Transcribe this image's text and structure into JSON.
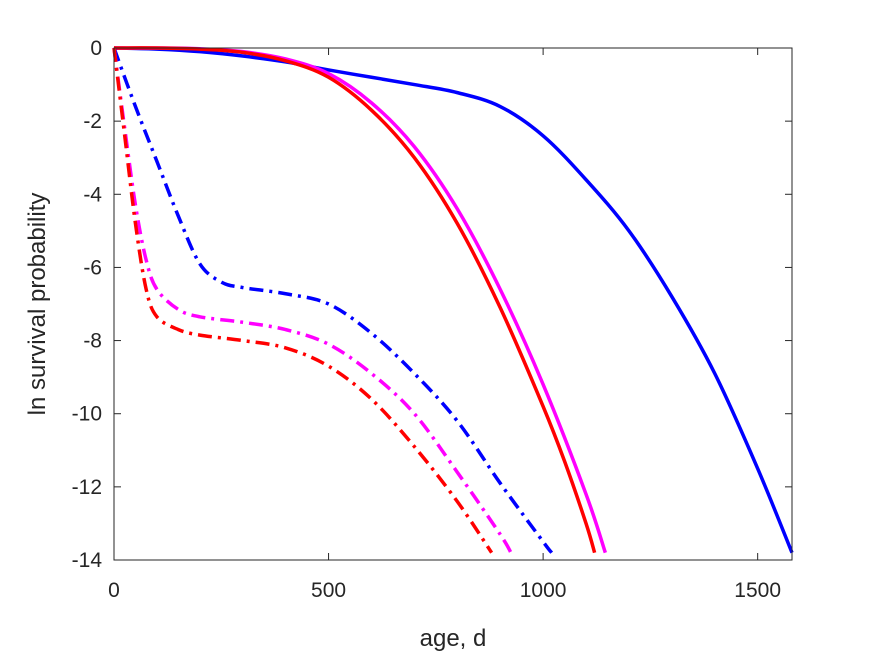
{
  "chart_data": {
    "type": "line",
    "title": "",
    "xlabel": "age, d",
    "ylabel": "ln survival probability",
    "xlim": [
      0,
      1580
    ],
    "ylim": [
      -14,
      0
    ],
    "xticks": [
      0,
      500,
      1000,
      1500
    ],
    "yticks": [
      0,
      -2,
      -4,
      -6,
      -8,
      -10,
      -12,
      -14
    ],
    "grid": false,
    "box": true,
    "series": [
      {
        "style": "solid",
        "color": "#0000ff",
        "x": [
          0,
          100,
          200,
          300,
          400,
          500,
          600,
          700,
          800,
          900,
          1000,
          1100,
          1200,
          1300,
          1400,
          1500,
          1580
        ],
        "y": [
          0,
          -0.03,
          -0.1,
          -0.22,
          -0.38,
          -0.6,
          -0.8,
          -1.0,
          -1.22,
          -1.6,
          -2.4,
          -3.6,
          -5.0,
          -6.8,
          -8.9,
          -11.5,
          -13.8
        ]
      },
      {
        "style": "solid",
        "color": "#ff00ff",
        "x": [
          0,
          100,
          200,
          300,
          400,
          500,
          600,
          700,
          800,
          900,
          1000,
          1100,
          1145
        ],
        "y": [
          0,
          0,
          -0.02,
          -0.1,
          -0.3,
          -0.7,
          -1.5,
          -2.7,
          -4.4,
          -6.6,
          -9.2,
          -12.2,
          -13.8
        ]
      },
      {
        "style": "solid",
        "color": "#ff0000",
        "x": [
          0,
          100,
          200,
          300,
          400,
          500,
          600,
          700,
          800,
          900,
          1000,
          1050,
          1100,
          1120
        ],
        "y": [
          0,
          0,
          -0.03,
          -0.12,
          -0.35,
          -0.8,
          -1.7,
          -3.0,
          -4.8,
          -7.1,
          -9.8,
          -11.3,
          -13.0,
          -13.8
        ]
      },
      {
        "style": "dashdot",
        "color": "#0000ff",
        "x": [
          0,
          50,
          100,
          150,
          200,
          250,
          300,
          400,
          500,
          600,
          700,
          800,
          900,
          1000,
          1020
        ],
        "y": [
          0,
          -1.6,
          -3.1,
          -4.6,
          -5.9,
          -6.4,
          -6.55,
          -6.72,
          -7.0,
          -7.8,
          -8.9,
          -10.2,
          -11.9,
          -13.5,
          -13.8
        ]
      },
      {
        "style": "dashdot",
        "color": "#ff00ff",
        "x": [
          0,
          25,
          50,
          75,
          100,
          150,
          200,
          300,
          400,
          500,
          600,
          700,
          800,
          900,
          925
        ],
        "y": [
          0,
          -2.2,
          -4.3,
          -5.8,
          -6.6,
          -7.15,
          -7.35,
          -7.5,
          -7.7,
          -8.1,
          -8.9,
          -10.0,
          -11.6,
          -13.3,
          -13.8
        ]
      },
      {
        "style": "dashdot",
        "color": "#ff0000",
        "x": [
          0,
          25,
          50,
          75,
          100,
          150,
          200,
          300,
          400,
          500,
          600,
          700,
          800,
          880
        ],
        "y": [
          0,
          -2.4,
          -4.8,
          -6.6,
          -7.35,
          -7.7,
          -7.85,
          -8.0,
          -8.2,
          -8.7,
          -9.6,
          -10.9,
          -12.4,
          -13.8
        ]
      }
    ]
  }
}
